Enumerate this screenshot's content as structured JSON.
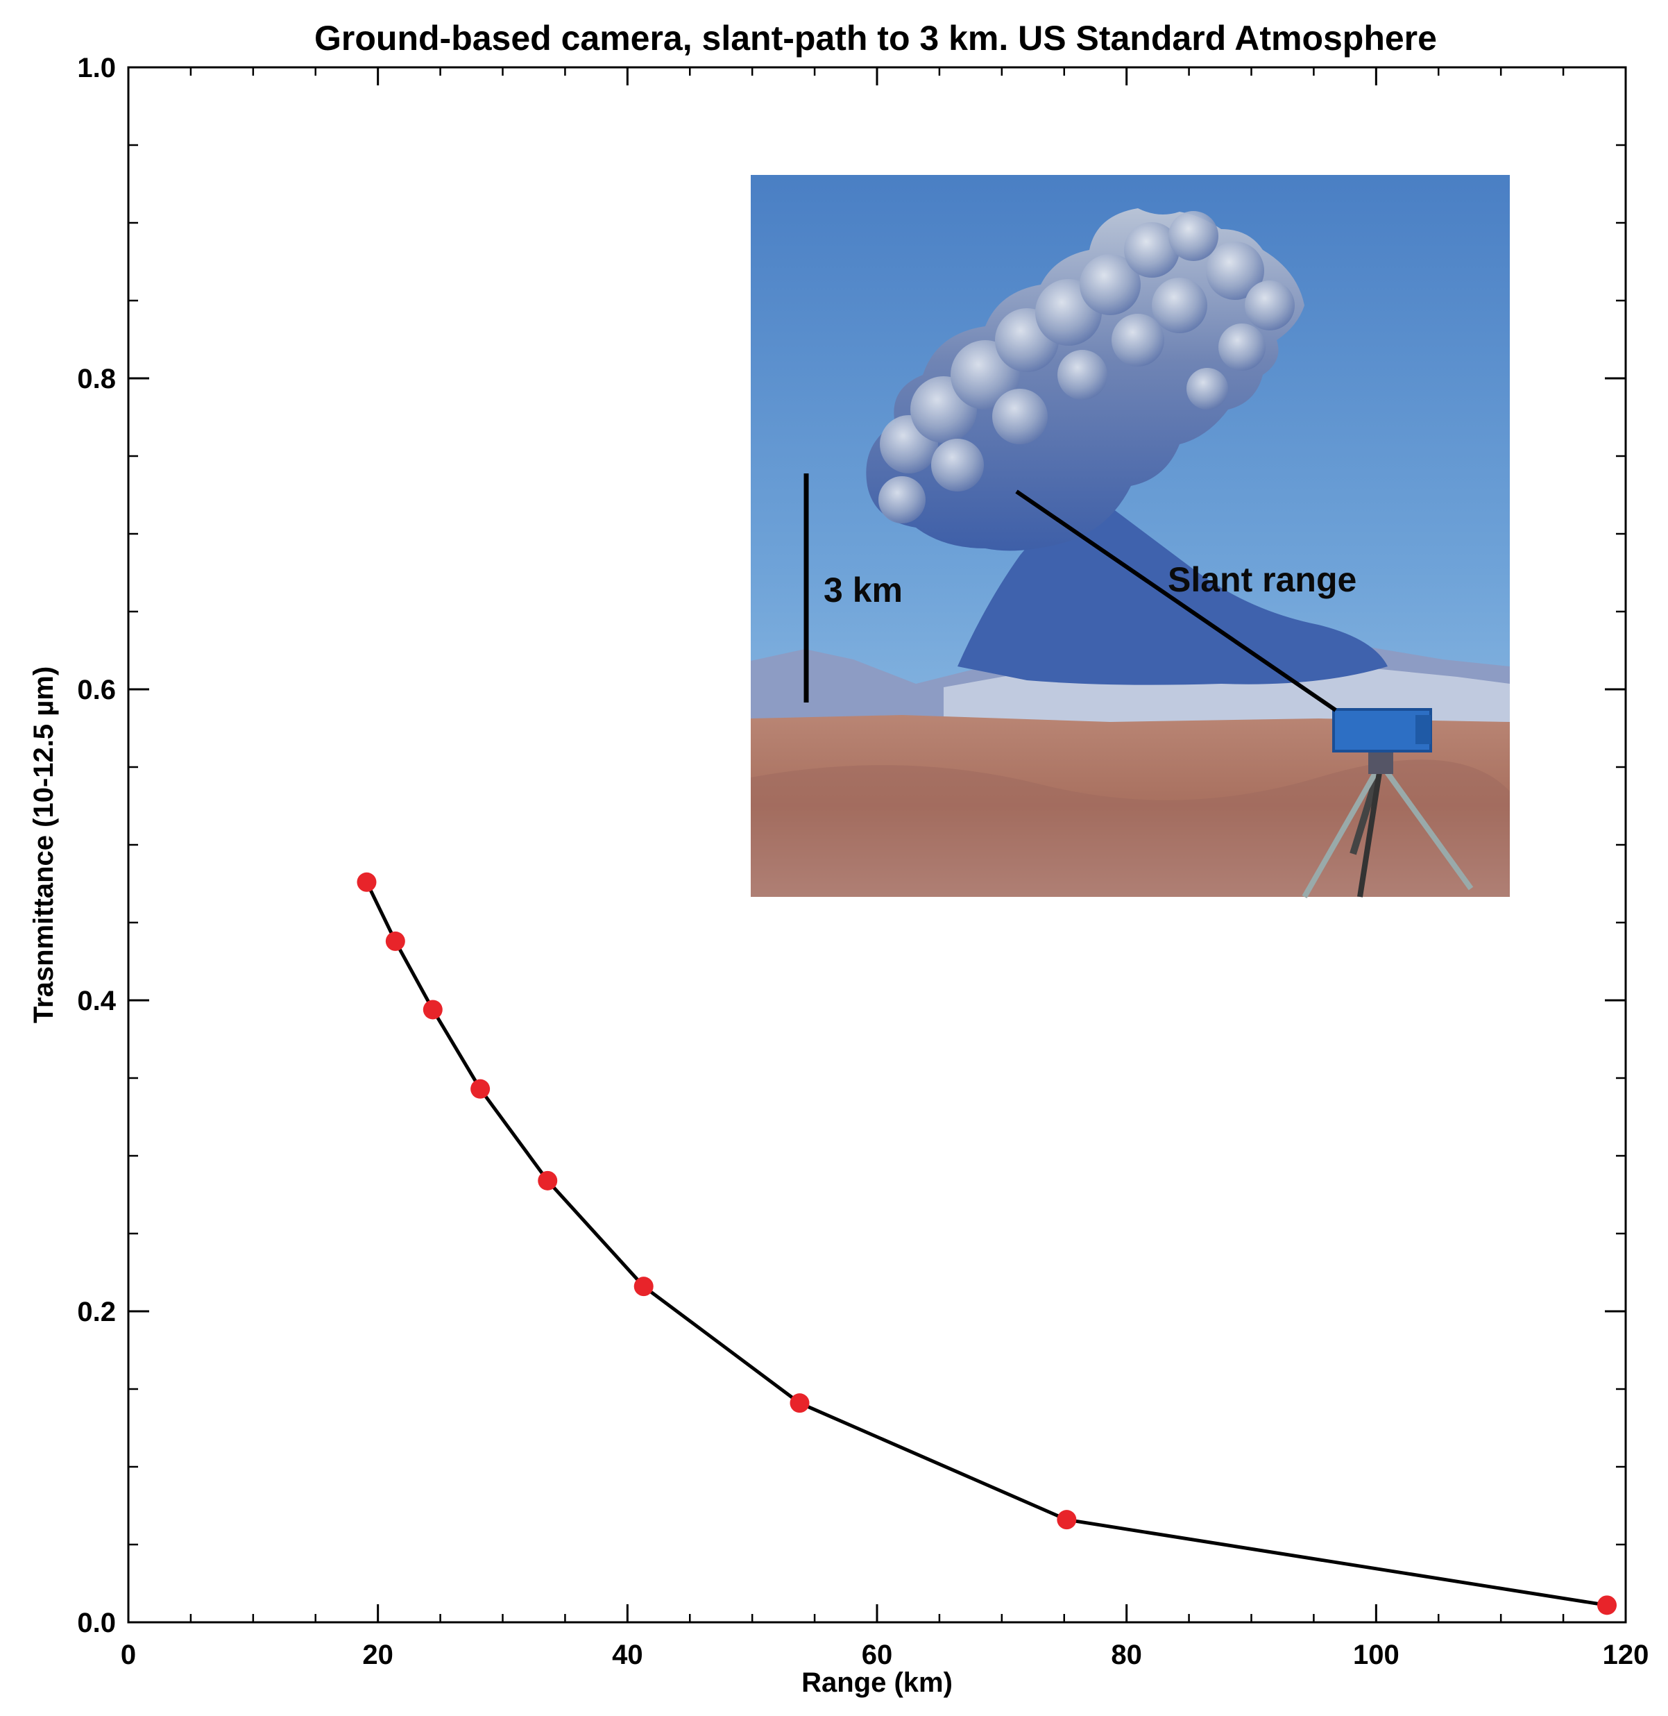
{
  "chart_data": {
    "type": "line",
    "title": "Ground-based camera, slant-path to 3 km.  US Standard Atmosphere",
    "xlabel": "Range (km)",
    "ylabel": "Trasnmittance (10-12.5 µm)",
    "xlim": [
      0,
      120
    ],
    "ylim": [
      0,
      1.0
    ],
    "x_ticks": [
      0,
      20,
      40,
      60,
      80,
      100,
      120
    ],
    "x_tick_labels": [
      "0",
      "20",
      "40",
      "60",
      "80",
      "100",
      "120"
    ],
    "y_ticks": [
      0,
      0.2,
      0.4,
      0.6,
      0.8,
      1.0
    ],
    "y_tick_labels": [
      "0.0",
      "0.2",
      "0.4",
      "0.6",
      "0.8",
      "1.0"
    ],
    "grid": false,
    "series": [
      {
        "x": [
          19.1,
          21.4,
          24.4,
          28.2,
          33.6,
          41.3,
          53.8,
          75.2,
          118.5
        ],
        "y": [
          0.476,
          0.438,
          0.394,
          0.343,
          0.284,
          0.216,
          0.141,
          0.066,
          0.011
        ],
        "line_color": "#000000",
        "marker_color": "#e8242a"
      }
    ],
    "inset_photo": {
      "scale_label": "3 km",
      "slant_label": "Slant range"
    }
  }
}
